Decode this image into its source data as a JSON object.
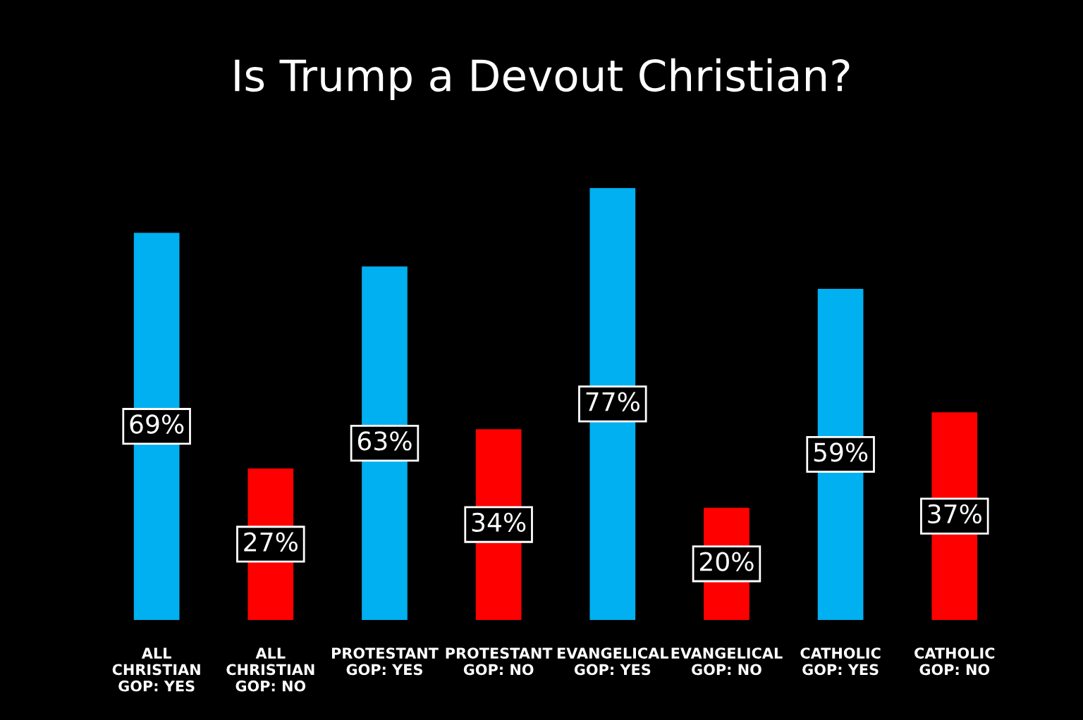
{
  "chart_data": {
    "type": "bar",
    "title": "Is Trump a Devout Christian?",
    "categories": [
      "ALL\nCHRISTIAN\nGOP: YES",
      "ALL\nCHRISTIAN\nGOP: NO",
      "PROTESTANT\nGOP: YES",
      "PROTESTANT\nGOP: NO",
      "EVANGELICAL\nGOP: YES",
      "EVANGELICAL\nGOP: NO",
      "CATHOLIC\nGOP: YES",
      "CATHOLIC\nGOP: NO"
    ],
    "values": [
      69,
      27,
      63,
      34,
      77,
      20,
      59,
      37
    ],
    "colors": [
      "#00b0f0",
      "#ff0000",
      "#00b0f0",
      "#ff0000",
      "#00b0f0",
      "#ff0000",
      "#00b0f0",
      "#ff0000"
    ],
    "value_labels": [
      "69%",
      "27%",
      "63%",
      "34%",
      "77%",
      "20%",
      "59%",
      "37%"
    ],
    "tick_labels": "x",
    "grid": false,
    "legend": false
  }
}
